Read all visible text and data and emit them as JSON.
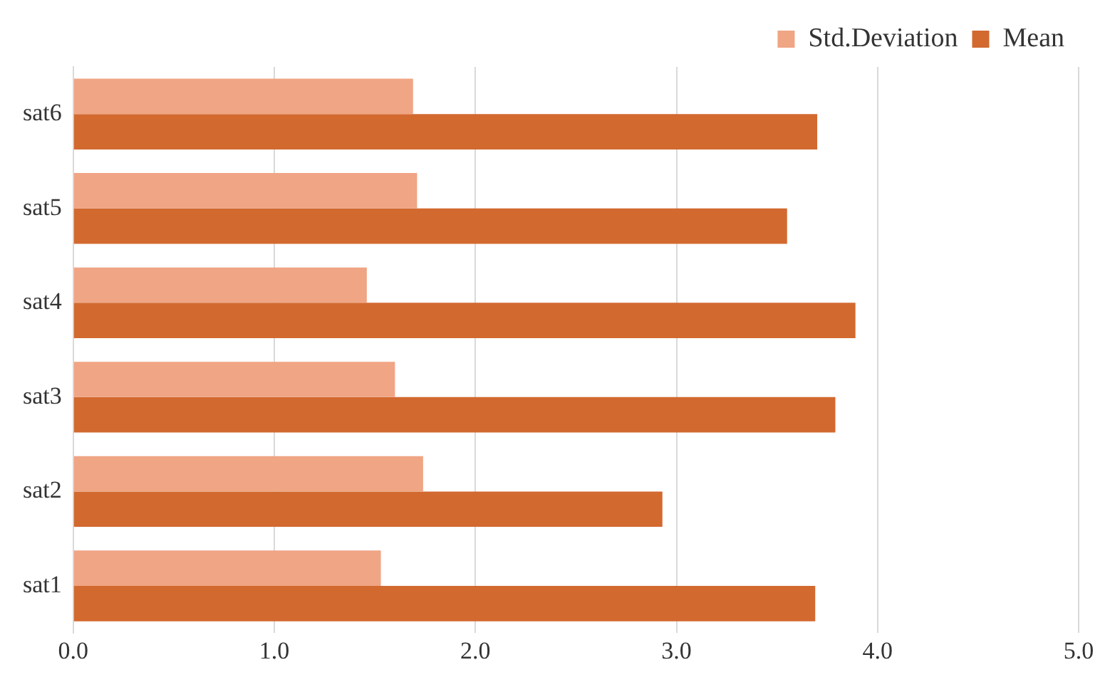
{
  "chart_data": {
    "type": "bar",
    "orientation": "horizontal",
    "categories": [
      "sat6",
      "sat5",
      "sat4",
      "sat3",
      "sat2",
      "sat1"
    ],
    "series": [
      {
        "name": "Std.Deviation",
        "color": "#f0a584",
        "values": [
          1.69,
          1.71,
          1.46,
          1.6,
          1.74,
          1.53
        ]
      },
      {
        "name": "Mean",
        "color": "#d2692f",
        "values": [
          3.7,
          3.55,
          3.89,
          3.79,
          2.93,
          3.69
        ]
      }
    ],
    "xlim": [
      0,
      5
    ],
    "xticks": [
      {
        "value": 0,
        "label": "0.0"
      },
      {
        "value": 1,
        "label": "1.0"
      },
      {
        "value": 2,
        "label": "2.0"
      },
      {
        "value": 3,
        "label": "3.0"
      },
      {
        "value": 4,
        "label": "4.0"
      },
      {
        "value": 5,
        "label": "5.0"
      }
    ],
    "grid": "x",
    "legend": "top right"
  }
}
